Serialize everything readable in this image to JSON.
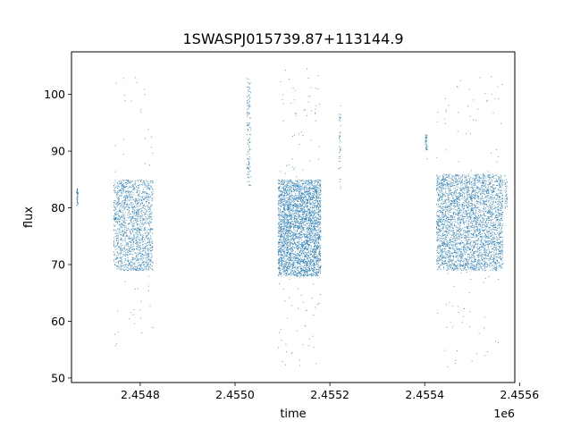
{
  "chart_data": {
    "type": "scatter",
    "title": "1SWASPJ015739.87+113144.9",
    "xlabel": "time",
    "ylabel": "flux",
    "x_offset_label": "1e6",
    "xlim": [
      2454655,
      2455590
    ],
    "ylim": [
      49.2,
      107.5
    ],
    "x_ticks": [
      2.4548,
      2.455,
      2.4552,
      2.4554,
      2.4556
    ],
    "x_tick_labels": [
      "2.4548",
      "2.4550",
      "2.4552",
      "2.4554",
      "2.4556"
    ],
    "y_ticks": [
      50,
      60,
      70,
      80,
      90,
      100
    ],
    "y_tick_labels": [
      "50",
      "60",
      "70",
      "80",
      "90",
      "100"
    ],
    "grid": false,
    "legend": "none",
    "marker_color": "#1f77b4",
    "clusters": [
      {
        "x_range": [
          2454665,
          2454668
        ],
        "y_range": [
          80.5,
          83.5
        ],
        "main_y": [
          80.5,
          83.5
        ],
        "density": "low"
      },
      {
        "x_range": [
          2454743,
          2454826
        ],
        "y_range": [
          55,
          104
        ],
        "main_y": [
          69,
          85
        ],
        "density": "high"
      },
      {
        "x_range": [
          2455024,
          2455032
        ],
        "y_range": [
          82,
          104
        ],
        "main_y": [
          84,
          103
        ],
        "density": "medium"
      },
      {
        "x_range": [
          2455090,
          2455180
        ],
        "y_range": [
          52,
          105
        ],
        "main_y": [
          68,
          85
        ],
        "density": "very-high"
      },
      {
        "x_range": [
          2455218,
          2455222
        ],
        "y_range": [
          82,
          101
        ],
        "main_y": [
          83,
          97
        ],
        "density": "low"
      },
      {
        "x_range": [
          2455400,
          2455405
        ],
        "y_range": [
          88,
          93
        ],
        "main_y": [
          90,
          93
        ],
        "density": "low"
      },
      {
        "x_range": [
          2455424,
          2455564
        ],
        "y_range": [
          52,
          104
        ],
        "main_y": [
          69,
          86
        ],
        "density": "very-high"
      },
      {
        "x_range": [
          2455568,
          2455574
        ],
        "y_range": [
          78,
          87
        ],
        "main_y": [
          80,
          86
        ],
        "density": "low"
      }
    ]
  }
}
